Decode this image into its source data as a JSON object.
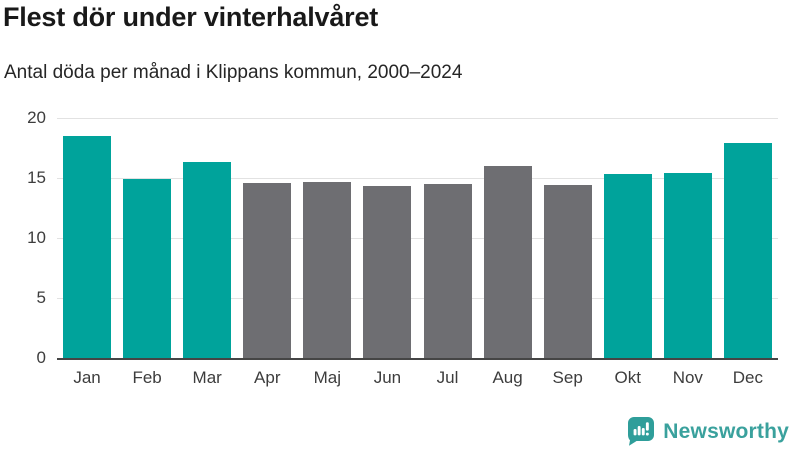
{
  "header": {
    "title": "Flest dör under vinterhalvåret",
    "subtitle": "Antal döda per månad i Klippans kommun, 2000–2024"
  },
  "chart_data": {
    "type": "bar",
    "title": "Flest dör under vinterhalvåret",
    "subtitle": "Antal döda per månad i Klippans kommun, 2000–2024",
    "categories": [
      "Jan",
      "Feb",
      "Mar",
      "Apr",
      "Maj",
      "Jun",
      "Jul",
      "Aug",
      "Sep",
      "Okt",
      "Nov",
      "Dec"
    ],
    "values": [
      18.5,
      14.9,
      16.3,
      14.6,
      14.7,
      14.3,
      14.5,
      16.0,
      14.4,
      15.3,
      15.4,
      17.9
    ],
    "bar_color_keys": [
      "winter",
      "winter",
      "winter",
      "summer",
      "summer",
      "summer",
      "summer",
      "summer",
      "summer",
      "winter",
      "winter",
      "winter"
    ],
    "colors": {
      "winter": "#00A39B",
      "summer": "#6E6E72"
    },
    "xlabel": "",
    "ylabel": "",
    "ylim": [
      0,
      20
    ],
    "yticks": [
      0,
      5,
      10,
      15,
      20
    ],
    "grid": true,
    "legend": false,
    "gridline_color": "#E2E2E2",
    "baseline_color": "#454545"
  },
  "footer": {
    "brand": "Newsworthy",
    "brand_color": "#3AA19D",
    "logo_icon": "newsworthy-chart-bubble-icon"
  }
}
